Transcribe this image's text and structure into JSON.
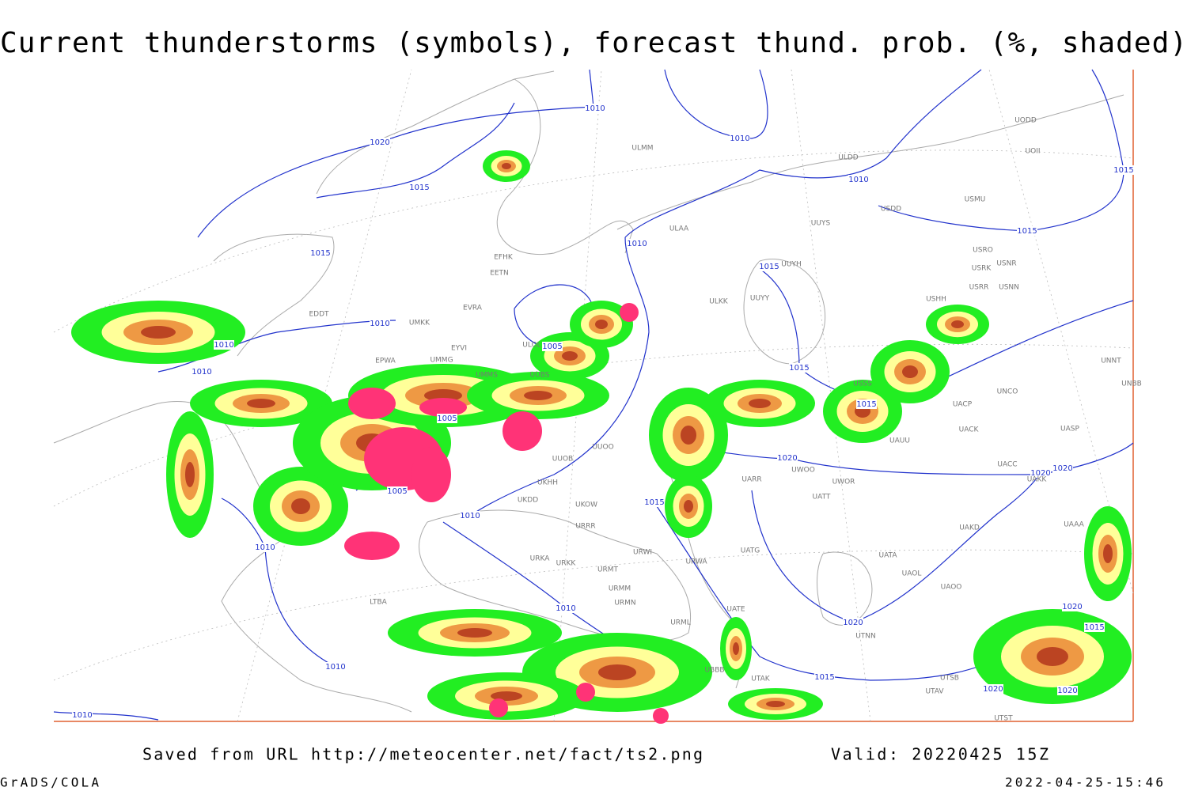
{
  "title": "Current thunderstorms (symbols), forecast thund. prob. (%, shaded)",
  "source": "Saved from URL http://meteocenter.net/fact/ts2.png",
  "valid": "Valid: 20220425 15Z",
  "credit": "GrADS/COLA",
  "timestamp": "2022-04-25-15:46",
  "isobar_labels": [
    "1010",
    "1020",
    "1015",
    "1010",
    "1010",
    "1015",
    "1015",
    "1015",
    "1010",
    "1015",
    "1010",
    "1005",
    "1010",
    "1010",
    "1005",
    "1015",
    "1015",
    "1020",
    "1005",
    "1010",
    "1015",
    "1010",
    "1020",
    "1020",
    "1010",
    "1020",
    "1010",
    "1015",
    "1010",
    "1020",
    "1020",
    "1020",
    "1015"
  ],
  "stations": [
    "ULMM",
    "ULDD",
    "UOII",
    "UODD",
    "USMU",
    "USDD",
    "UUYS",
    "ULAA",
    "USRO",
    "USRK",
    "USNR",
    "USRR",
    "USNN",
    "UUYH",
    "UUYY",
    "ULKK",
    "USHH",
    "EFHK",
    "EETN",
    "EVRA",
    "EDDT",
    "UMKK",
    "ULOL",
    "EYVI",
    "UMMG",
    "EPWA",
    "UMMS",
    "UUBS",
    "USSS",
    "UNNT",
    "UNBB",
    "UNCO",
    "UACP",
    "UACK",
    "UASP",
    "UAUU",
    "UUOB",
    "UUOO",
    "UARR",
    "UWOO",
    "UWOR",
    "UACC",
    "UAKK",
    "UATT",
    "UKHH",
    "UKDD",
    "UKOW",
    "UAKD",
    "UAAA",
    "URRR",
    "URWI",
    "UATG",
    "UATA",
    "UAOL",
    "UAOO",
    "URKA",
    "URKK",
    "URMT",
    "URMM",
    "URMN",
    "URML",
    "URWA",
    "UATE",
    "UTNN",
    "UBBB",
    "UTAK",
    "UTSB",
    "UTAV",
    "UTST",
    "LTBA"
  ]
}
